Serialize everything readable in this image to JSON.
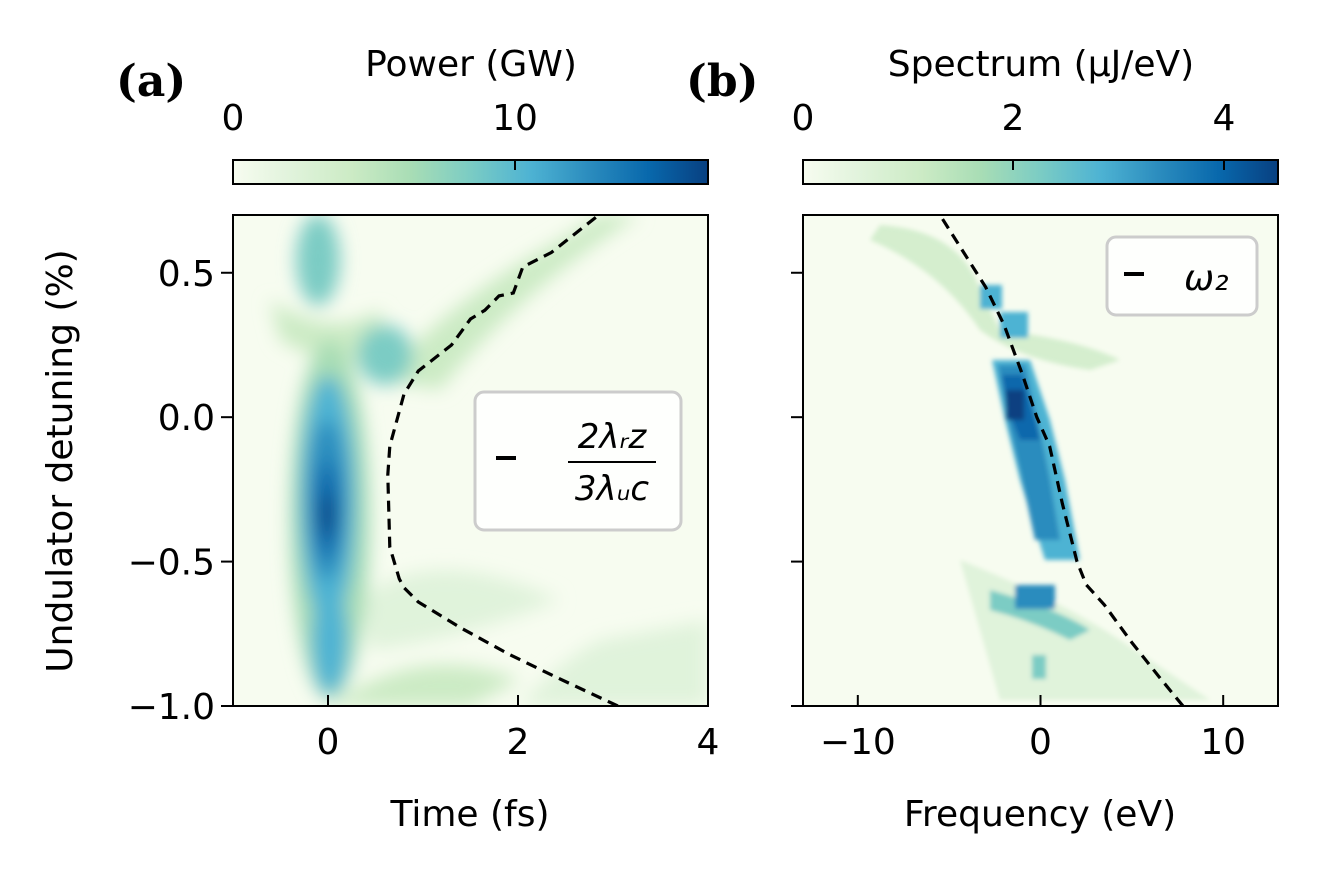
{
  "figure": {
    "panel_a_label": "(a)",
    "panel_b_label": "(b)"
  },
  "colors": {
    "cmap": [
      "#f7fcf0",
      "#e0f3db",
      "#ccebc5",
      "#a8ddb5",
      "#7bccc4",
      "#4eb3d3",
      "#2b8cbe",
      "#0868ac",
      "#084081"
    ],
    "dashed_line": "#000000",
    "axis": "#000000"
  },
  "chart_data": [
    {
      "type": "heatmap",
      "panel": "(a)",
      "colorbar_label": "Power (GW)",
      "colorbar_ticks": [
        "0",
        "10"
      ],
      "colorbar_range": [
        0,
        16.5
      ],
      "xlabel": "Time (fs)",
      "ylabel": "Undulator detuning (%)",
      "xlim": [
        -1.0,
        4.0
      ],
      "ylim": [
        -1.0,
        0.7
      ],
      "xticks": [
        0,
        2,
        4
      ],
      "xtick_labels": [
        "0",
        "2",
        "4"
      ],
      "yticks": [
        0.5,
        0.0,
        -0.5,
        -1.0
      ],
      "ytick_labels": [
        "0.5",
        "0.0",
        "−0.5",
        "−1.0"
      ],
      "legend": {
        "label_numerator": "2λᵣz",
        "label_denominator": "3λᵤc",
        "placement": "center-right"
      },
      "dashed_curve": {
        "x": [
          3.05,
          2.4,
          1.9,
          1.4,
          0.95,
          0.8,
          0.75,
          0.65,
          0.63,
          0.65,
          0.8,
          0.95,
          1.3,
          1.5,
          1.65,
          1.8,
          1.95,
          2.05,
          2.35,
          2.85
        ],
        "y": [
          -1.0,
          -0.9,
          -0.82,
          -0.73,
          -0.64,
          -0.59,
          -0.56,
          -0.45,
          -0.2,
          -0.1,
          0.08,
          0.16,
          0.25,
          0.34,
          0.37,
          0.42,
          0.43,
          0.52,
          0.57,
          0.7
        ]
      }
    },
    {
      "type": "heatmap",
      "panel": "(b)",
      "colorbar_label": "Spectrum (μJ/eV)",
      "colorbar_ticks": [
        "0",
        "2",
        "4"
      ],
      "colorbar_range": [
        0,
        4.5
      ],
      "xlabel": "Frequency (eV)",
      "ylabel": "",
      "xlim": [
        -13,
        13
      ],
      "ylim": [
        -1.0,
        0.7
      ],
      "xticks": [
        -10,
        0,
        10
      ],
      "xtick_labels": [
        "−10",
        "0",
        "10"
      ],
      "yticks": [
        0.5,
        0.0,
        -0.5,
        -1.0
      ],
      "legend": {
        "label": "ω₂",
        "placement": "top-right"
      },
      "dashed_curve": {
        "x": [
          7.8,
          6.5,
          5.0,
          3.5,
          2.5,
          2.0,
          1.2,
          0.5,
          -0.2,
          -1.0,
          -2.0,
          -3.0,
          -4.0,
          -5.5
        ],
        "y": [
          -1.0,
          -0.9,
          -0.78,
          -0.65,
          -0.58,
          -0.5,
          -0.3,
          -0.1,
          0.0,
          0.15,
          0.32,
          0.45,
          0.55,
          0.7
        ]
      }
    }
  ]
}
